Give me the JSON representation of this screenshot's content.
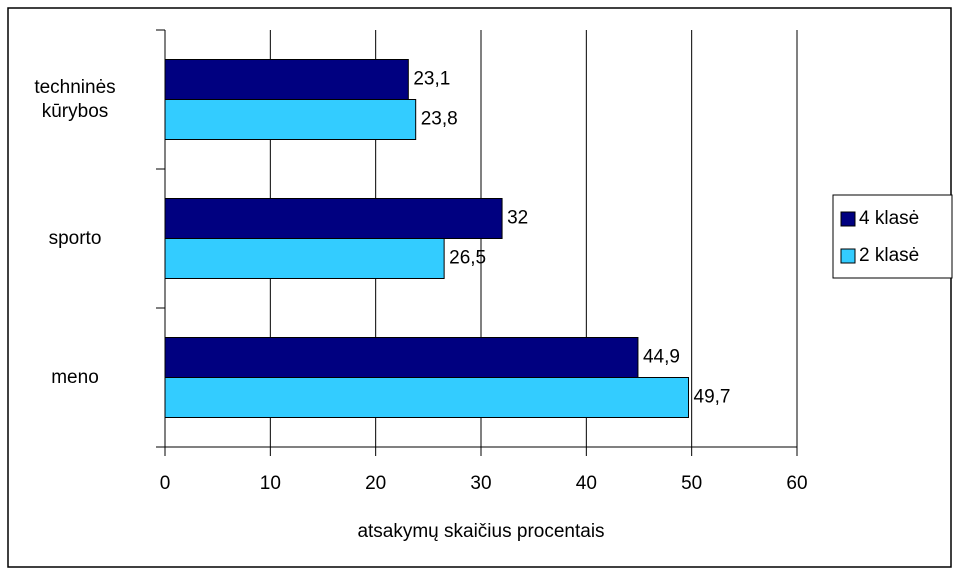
{
  "chart_data": {
    "type": "hbar",
    "categories": [
      "techninės\nkūrybos",
      "sporto",
      "meno"
    ],
    "series": [
      {
        "name": "4 klasė",
        "color": "#000080",
        "values": [
          23.1,
          32,
          44.9
        ],
        "value_labels": [
          "23,1",
          "32",
          "44,9"
        ]
      },
      {
        "name": "2 klasė",
        "color": "#33ccff",
        "values": [
          23.8,
          26.5,
          49.7
        ],
        "value_labels": [
          "23,8",
          "26,5",
          "49,7"
        ]
      }
    ],
    "xlabel": "atsakymų skaičius procentais",
    "xlim": [
      0,
      60
    ],
    "xticks": [
      0,
      10,
      20,
      30,
      40,
      50,
      60
    ],
    "grid": true,
    "legend": "right"
  }
}
